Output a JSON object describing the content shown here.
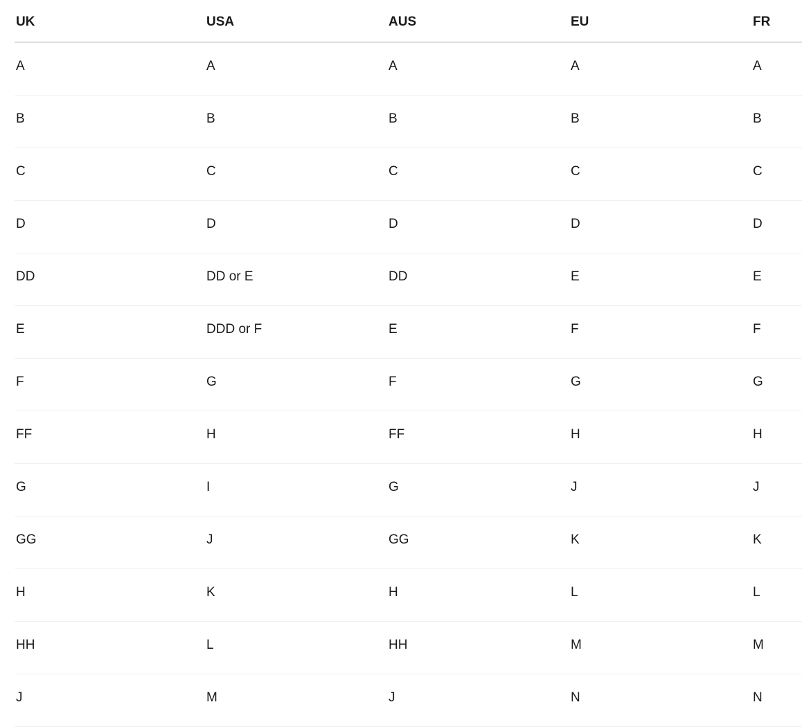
{
  "chart_data": {
    "type": "table",
    "columns": [
      "UK",
      "USA",
      "AUS",
      "EU",
      "FR"
    ],
    "rows": [
      [
        "A",
        "A",
        "A",
        "A",
        "A"
      ],
      [
        "B",
        "B",
        "B",
        "B",
        "B"
      ],
      [
        "C",
        "C",
        "C",
        "C",
        "C"
      ],
      [
        "D",
        "D",
        "D",
        "D",
        "D"
      ],
      [
        "DD",
        "DD or E",
        "DD",
        "E",
        "E"
      ],
      [
        "E",
        "DDD or F",
        "E",
        "F",
        "F"
      ],
      [
        "F",
        "G",
        "F",
        "G",
        "G"
      ],
      [
        "FF",
        "H",
        "FF",
        "H",
        "H"
      ],
      [
        "G",
        "I",
        "G",
        "J",
        "J"
      ],
      [
        "GG",
        "J",
        "GG",
        "K",
        "K"
      ],
      [
        "H",
        "K",
        "H",
        "L",
        "L"
      ],
      [
        "HH",
        "L",
        "HH",
        "M",
        "M"
      ],
      [
        "J",
        "M",
        "J",
        "N",
        "N"
      ]
    ]
  },
  "colors": {
    "text": "#1a1a1a",
    "header-divider": "#dedede",
    "row-divider": "#f0f0f0",
    "background": "#ffffff"
  }
}
